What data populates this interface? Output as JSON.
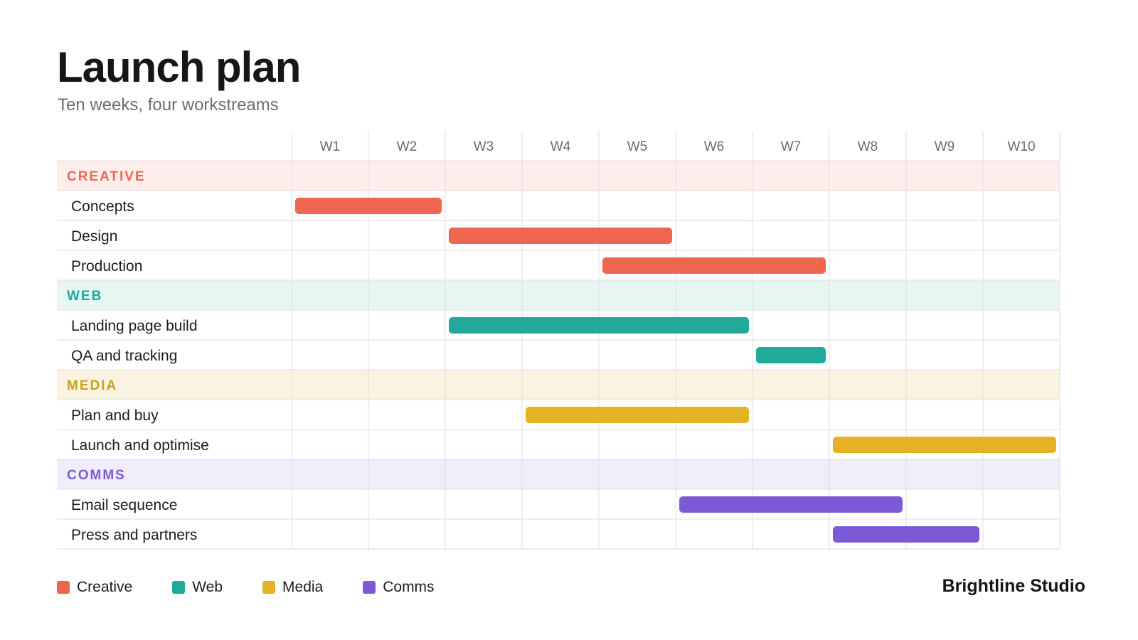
{
  "header": {
    "title": "Launch plan",
    "subtitle": "Ten weeks, four workstreams"
  },
  "brand": "Brightline Studio",
  "legend": [
    {
      "label": "Creative",
      "color": "#ef6650"
    },
    {
      "label": "Web",
      "color": "#21a99a"
    },
    {
      "label": "Media",
      "color": "#e3b225"
    },
    {
      "label": "Comms",
      "color": "#7c5ad6"
    }
  ],
  "chart_data": {
    "type": "gantt",
    "x_unit": "week",
    "weeks": [
      "W1",
      "W2",
      "W3",
      "W4",
      "W5",
      "W6",
      "W7",
      "W8",
      "W9",
      "W10"
    ],
    "groups": [
      {
        "label": "CREATIVE",
        "color": "#ef6650",
        "band_color": "#fdeeec",
        "tasks": [
          {
            "name": "Concepts",
            "start_week": 1,
            "end_week": 2
          },
          {
            "name": "Design",
            "start_week": 3,
            "end_week": 5
          },
          {
            "name": "Production",
            "start_week": 5,
            "end_week": 7
          }
        ]
      },
      {
        "label": "WEB",
        "color": "#21a99a",
        "band_color": "#e7f5f3",
        "tasks": [
          {
            "name": "Landing page build",
            "start_week": 3,
            "end_week": 6
          },
          {
            "name": "QA and tracking",
            "start_week": 7,
            "end_week": 7
          }
        ]
      },
      {
        "label": "MEDIA",
        "color": "#c9a01c",
        "band_color": "#fbf3e2",
        "bar_color": "#e3b225",
        "tasks": [
          {
            "name": "Plan and buy",
            "start_week": 4,
            "end_week": 6
          },
          {
            "name": "Launch and optimise",
            "start_week": 8,
            "end_week": 10
          }
        ]
      },
      {
        "label": "COMMS",
        "color": "#7c5ad6",
        "band_color": "#efedfa",
        "tasks": [
          {
            "name": "Email sequence",
            "start_week": 6,
            "end_week": 8
          },
          {
            "name": "Press and partners",
            "start_week": 8,
            "end_week": 9
          }
        ]
      }
    ],
    "grid": true,
    "legend_position": "bottom-left"
  }
}
